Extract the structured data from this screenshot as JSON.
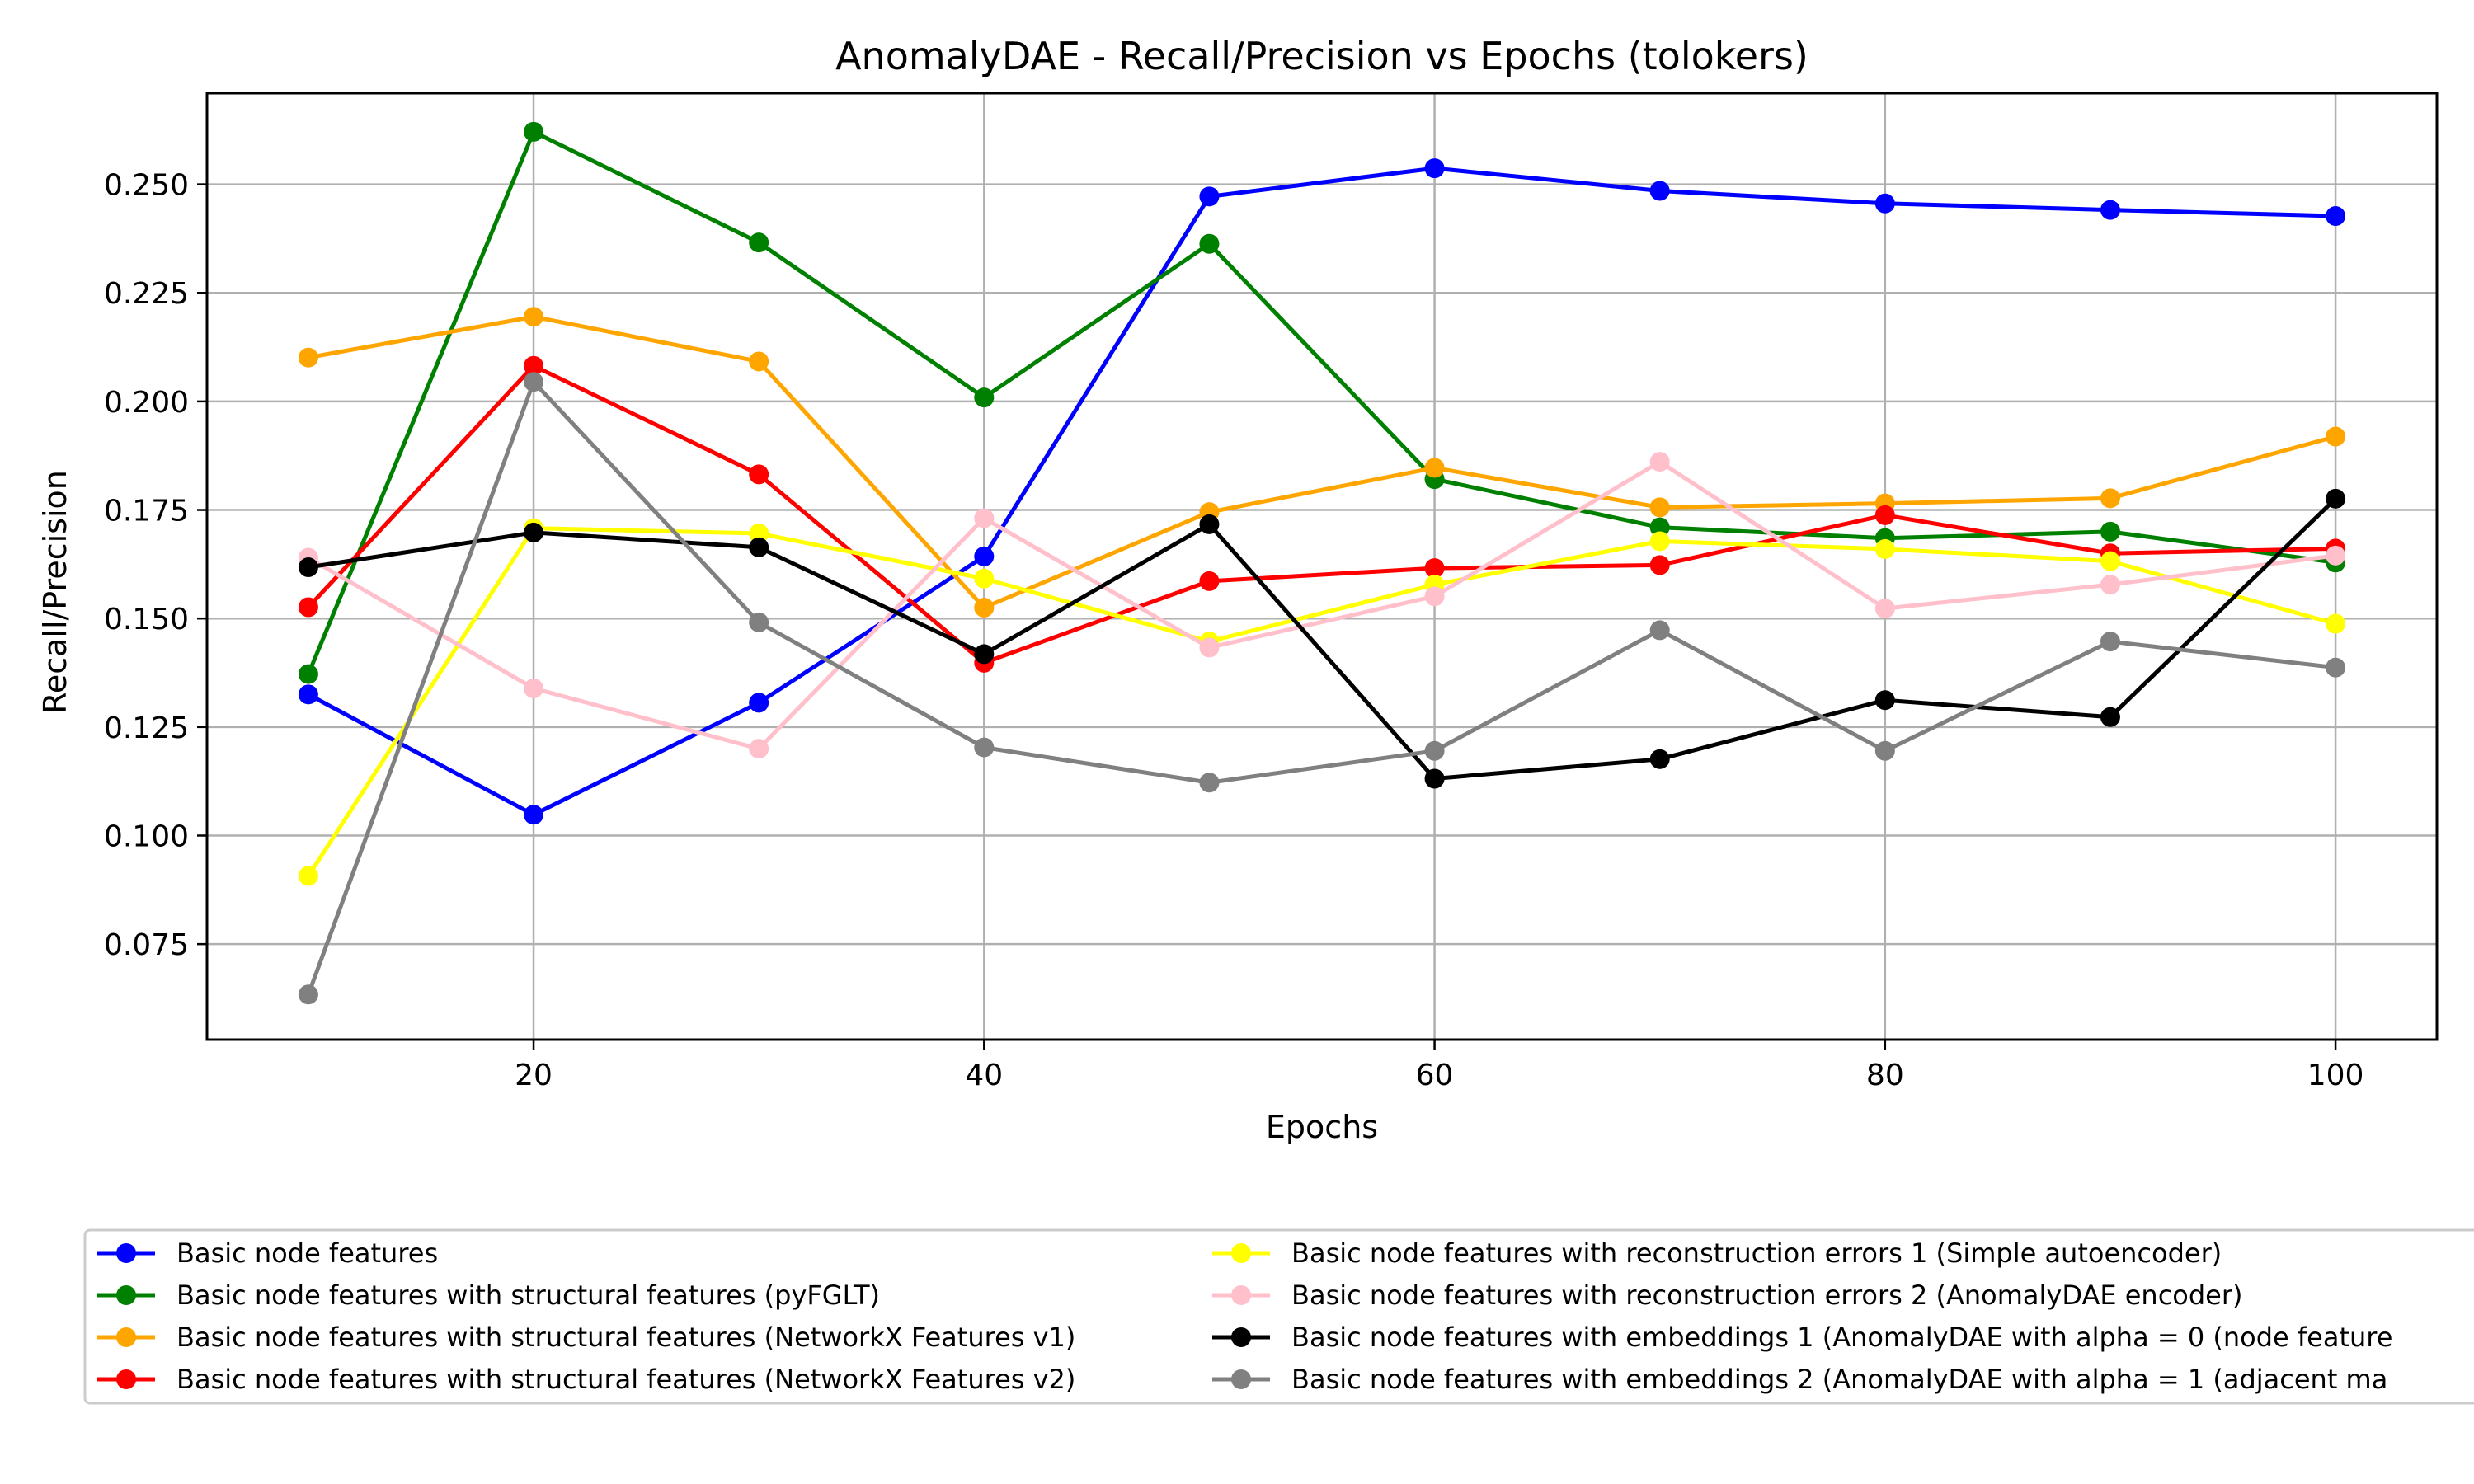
{
  "chart_data": {
    "type": "line",
    "title": "AnomalyDAE - Recall/Precision vs Epochs (tolokers)",
    "xlabel": "Epochs",
    "ylabel": "Recall/Precision",
    "x": [
      10,
      20,
      30,
      40,
      50,
      60,
      70,
      80,
      90,
      100
    ],
    "xlim": [
      5.5,
      104.5
    ],
    "ylim": [
      0.053,
      0.271
    ],
    "xticks": [
      20,
      40,
      60,
      80,
      100
    ],
    "yticks": [
      0.075,
      0.1,
      0.125,
      0.15,
      0.175,
      0.2,
      0.225,
      0.25
    ],
    "xtick_labels": [
      "20",
      "40",
      "60",
      "80",
      "100"
    ],
    "ytick_labels": [
      "0.075",
      "0.100",
      "0.125",
      "0.150",
      "0.175",
      "0.200",
      "0.225",
      "0.250"
    ],
    "grid": true,
    "legend_position": "below-plot",
    "series": [
      {
        "name": "Basic node features",
        "color": "#0000ff",
        "values": [
          0.1325,
          0.1048,
          0.1306,
          0.1643,
          0.2472,
          0.2537,
          0.2485,
          0.2456,
          0.2441,
          0.2427
        ]
      },
      {
        "name": "Basic node features with structural features (pyFGLT)",
        "color": "#008000",
        "values": [
          0.1372,
          0.2621,
          0.2366,
          0.2009,
          0.2363,
          0.1821,
          0.171,
          0.1685,
          0.17,
          0.1629
        ]
      },
      {
        "name": "Basic node features with structural features (NetworkX Features v1)",
        "color": "#ffa500",
        "values": [
          0.2101,
          0.2195,
          0.2092,
          0.1525,
          0.1745,
          0.1847,
          0.1756,
          0.1765,
          0.1777,
          0.1919
        ]
      },
      {
        "name": "Basic node features with structural features (NetworkX Features v2)",
        "color": "#ff0000",
        "values": [
          0.1526,
          0.2082,
          0.1832,
          0.1398,
          0.1586,
          0.1616,
          0.1623,
          0.1738,
          0.165,
          0.1661
        ]
      },
      {
        "name": "Basic node features with reconstruction errors 1 (Simple autoencoder)",
        "color": "#ffff00",
        "values": [
          0.0907,
          0.1708,
          0.1696,
          0.1592,
          0.1447,
          0.1578,
          0.1678,
          0.166,
          0.1632,
          0.1488
        ]
      },
      {
        "name": "Basic node features with reconstruction errors 2 (AnomalyDAE encoder)",
        "color": "#ffc0cb",
        "values": [
          0.164,
          0.1339,
          0.12,
          0.1731,
          0.1433,
          0.1551,
          0.1861,
          0.1523,
          0.1578,
          0.1645
        ]
      },
      {
        "name": "Basic node features with embeddings 1 (AnomalyDAE with alpha = 0 (node feature",
        "color": "#000000",
        "values": [
          0.1618,
          0.1698,
          0.1664,
          0.1418,
          0.1717,
          0.1131,
          0.1176,
          0.1312,
          0.1273,
          0.1776
        ]
      },
      {
        "name": "Basic node features with embeddings 2 (AnomalyDAE with alpha = 1 (adjacent ma",
        "color": "#808080",
        "values": [
          0.0634,
          0.2045,
          0.1491,
          0.1203,
          0.1122,
          0.1195,
          0.1473,
          0.1195,
          0.1447,
          0.1387
        ]
      }
    ]
  }
}
